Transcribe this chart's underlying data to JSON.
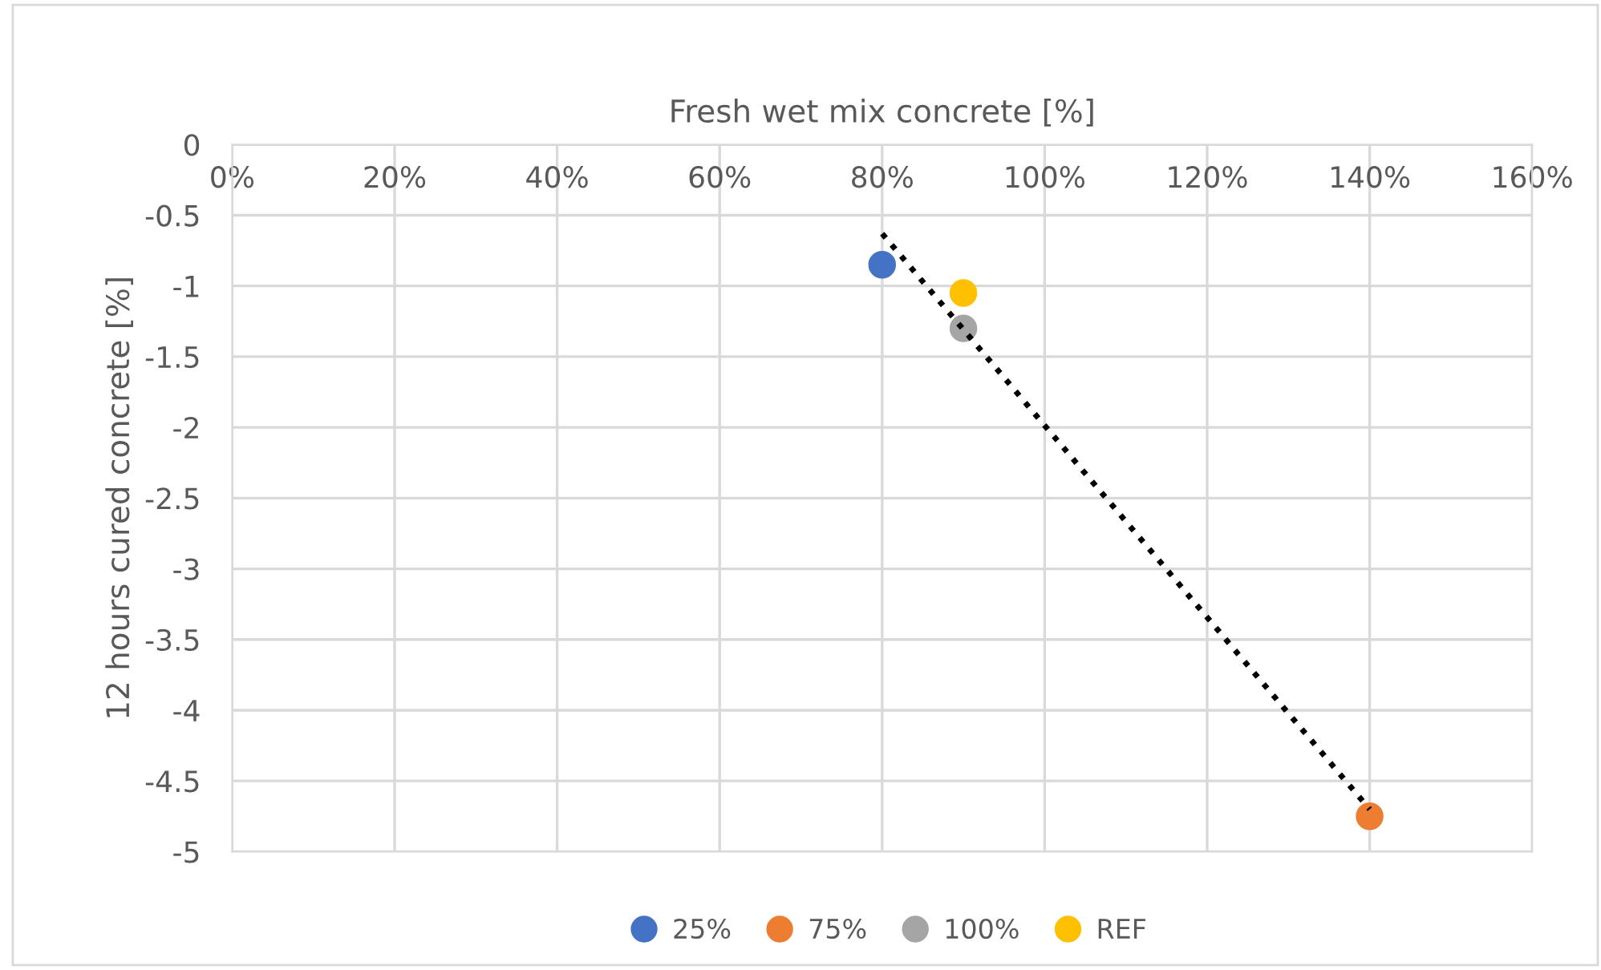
{
  "chart_data": {
    "type": "scatter",
    "xlabel": "Fresh wet mix concrete [%]",
    "ylabel": "12 hours cured concrete [%]",
    "series": [
      {
        "name": "25%",
        "color": "#4472c4",
        "x": [
          80
        ],
        "values": [
          -0.85
        ]
      },
      {
        "name": "75%",
        "color": "#ed7d31",
        "x": [
          140
        ],
        "values": [
          -4.75
        ]
      },
      {
        "name": "100%",
        "color": "#a5a5a5",
        "x": [
          90
        ],
        "values": [
          -1.3
        ]
      },
      {
        "name": "REF",
        "color": "#ffc000",
        "x": [
          90
        ],
        "values": [
          -1.05
        ]
      },
      {
        "type": "line",
        "color": "#000000",
        "line_style": "dotted",
        "marker": "none",
        "x": [
          80,
          140
        ],
        "values": [
          -0.63,
          -4.7
        ]
      }
    ],
    "xlim": [
      0,
      160
    ],
    "xticks": [
      {
        "value": 0,
        "label": "0%"
      },
      {
        "value": 20,
        "label": "20%"
      },
      {
        "value": 40,
        "label": "40%"
      },
      {
        "value": 60,
        "label": "60%"
      },
      {
        "value": 80,
        "label": "80%"
      },
      {
        "value": 100,
        "label": "100%"
      },
      {
        "value": 120,
        "label": "120%"
      },
      {
        "value": 140,
        "label": "140%"
      },
      {
        "value": 160,
        "label": "160%"
      }
    ],
    "ylim": [
      -5,
      0
    ],
    "yticks": [
      0,
      -0.5,
      -1,
      -1.5,
      -2,
      -2.5,
      -3,
      -3.5,
      -4,
      -4.5,
      -5
    ],
    "grid": true,
    "legend": "bottom",
    "marker": "circle"
  }
}
